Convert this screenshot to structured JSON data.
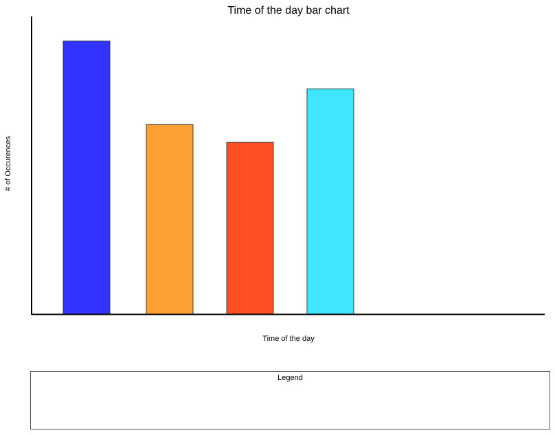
{
  "chart_data": {
    "type": "bar",
    "title": "Time of the day bar chart",
    "xlabel": "Time of the day",
    "ylabel": "# of Occurences",
    "categories": [
      "",
      "",
      "",
      ""
    ],
    "values": [
      100,
      69.4,
      62.9,
      82.5
    ],
    "colors": [
      "#3333ff",
      "#ffa033",
      "#ff5024",
      "#40e6ff"
    ],
    "ylim": [
      0,
      110
    ],
    "grid": false,
    "legend": {
      "title": "Legend",
      "placement": "bottom",
      "entries": []
    }
  }
}
